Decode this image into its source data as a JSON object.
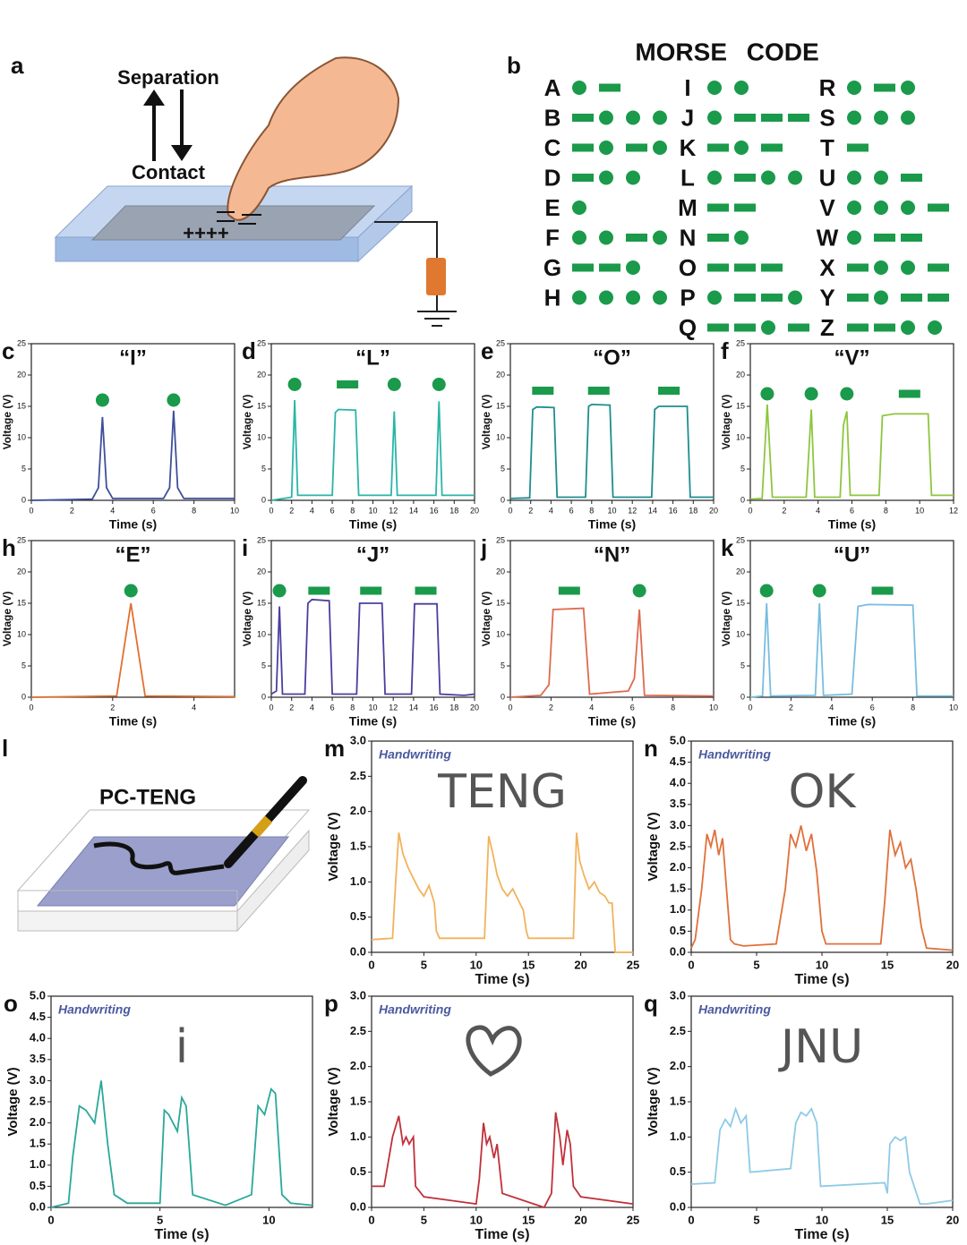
{
  "panel_a": {
    "letter": "a",
    "separation": "Separation",
    "contact": "Contact",
    "charges": "++++"
  },
  "panel_b": {
    "letter": "b",
    "title": "MORSE CODE",
    "letters": [
      {
        "letter": "A",
        "code": ".-"
      },
      {
        "letter": "B",
        "code": "-..."
      },
      {
        "letter": "C",
        "code": "-.-."
      },
      {
        "letter": "D",
        "code": "-.."
      },
      {
        "letter": "E",
        "code": "."
      },
      {
        "letter": "F",
        "code": "..-."
      },
      {
        "letter": "G",
        "code": "--."
      },
      {
        "letter": "H",
        "code": "...."
      },
      {
        "letter": "I",
        "code": ".."
      },
      {
        "letter": "J",
        "code": ".---"
      },
      {
        "letter": "K",
        "code": "-.-"
      },
      {
        "letter": "L",
        "code": ".-.."
      },
      {
        "letter": "M",
        "code": "--"
      },
      {
        "letter": "N",
        "code": "-."
      },
      {
        "letter": "O",
        "code": "---"
      },
      {
        "letter": "P",
        "code": ".--."
      },
      {
        "letter": "Q",
        "code": "--.-"
      },
      {
        "letter": "R",
        "code": ".-."
      },
      {
        "letter": "S",
        "code": "..."
      },
      {
        "letter": "T",
        "code": "-"
      },
      {
        "letter": "U",
        "code": "..-"
      },
      {
        "letter": "V",
        "code": "...-"
      },
      {
        "letter": "W",
        "code": ".--"
      },
      {
        "letter": "X",
        "code": "-..-"
      },
      {
        "letter": "Y",
        "code": "-.--"
      },
      {
        "letter": "Z",
        "code": "--.."
      }
    ]
  },
  "panel_l": {
    "letter": "l",
    "label": "PC-TENG"
  },
  "chart_data": [
    {
      "type": "line",
      "panel": "c",
      "title": "“I”",
      "x_label": "Time (s)",
      "y_label": "Voltage (V)",
      "xlim": [
        0,
        10
      ],
      "xticks": [
        0,
        2,
        4,
        6,
        8,
        10
      ],
      "ylim": [
        0,
        25
      ],
      "yticks": [
        0,
        5,
        10,
        15,
        20,
        25
      ],
      "color": "#3f4f9a",
      "x": [
        0,
        3,
        3.3,
        3.5,
        3.7,
        4,
        6.5,
        6.8,
        7,
        7.2,
        7.5,
        10
      ],
      "values": [
        0,
        0.2,
        2,
        13.3,
        2,
        0.3,
        0.3,
        2,
        14.3,
        2,
        0.3,
        0.3
      ],
      "symbols": [
        {
          "x": 3.5,
          "y": 16,
          "shape": "dot"
        },
        {
          "x": 7,
          "y": 16,
          "shape": "dot"
        }
      ]
    },
    {
      "type": "line",
      "panel": "d",
      "title": "“L”",
      "x_label": "Time (s)",
      "y_label": "Voltage (V)",
      "xlim": [
        0,
        20
      ],
      "xticks": [
        0,
        2,
        4,
        6,
        8,
        10,
        12,
        14,
        16,
        18,
        20
      ],
      "ylim": [
        0,
        25
      ],
      "yticks": [
        0,
        5,
        10,
        15,
        20,
        25
      ],
      "color": "#2ab5a8",
      "x": [
        0,
        2,
        2.3,
        2.6,
        6,
        6.3,
        6.6,
        8.3,
        8.6,
        11.8,
        12.1,
        12.4,
        16.2,
        16.5,
        16.8,
        20
      ],
      "values": [
        0,
        0.5,
        16,
        0.8,
        0.8,
        14,
        14.5,
        14.4,
        0.8,
        0.8,
        14.2,
        0.8,
        0.8,
        15.8,
        0.8,
        0.8
      ],
      "symbols": [
        {
          "x": 2.3,
          "y": 18.5,
          "shape": "dot"
        },
        {
          "x": 7.5,
          "y": 18.5,
          "shape": "dash"
        },
        {
          "x": 12.1,
          "y": 18.5,
          "shape": "dot"
        },
        {
          "x": 16.5,
          "y": 18.5,
          "shape": "dot"
        }
      ]
    },
    {
      "type": "line",
      "panel": "e",
      "title": "“O”",
      "x_label": "Time (s)",
      "y_label": "Voltage (V)",
      "xlim": [
        0,
        20
      ],
      "xticks": [
        0,
        2,
        4,
        6,
        8,
        10,
        12,
        14,
        16,
        18,
        20
      ],
      "ylim": [
        0,
        25
      ],
      "yticks": [
        0,
        5,
        10,
        15,
        20,
        25
      ],
      "color": "#1f8d8d",
      "x": [
        0,
        1.9,
        2.2,
        2.6,
        4.3,
        4.6,
        7.4,
        7.7,
        8,
        9.8,
        10.1,
        13.9,
        14.2,
        14.6,
        17.4,
        17.7,
        20
      ],
      "values": [
        0.3,
        0.4,
        14.5,
        14.9,
        14.8,
        0.5,
        0.5,
        15,
        15.3,
        15.2,
        0.5,
        0.5,
        14.5,
        15,
        15,
        0.5,
        0.5
      ],
      "symbols": [
        {
          "x": 3.2,
          "y": 17.5,
          "shape": "dash"
        },
        {
          "x": 8.7,
          "y": 17.5,
          "shape": "dash"
        },
        {
          "x": 15.6,
          "y": 17.5,
          "shape": "dash"
        }
      ]
    },
    {
      "type": "line",
      "panel": "f",
      "title": "“V”",
      "x_label": "Time (s)",
      "y_label": "Voltage (V)",
      "xlim": [
        0,
        12
      ],
      "xticks": [
        0,
        2,
        4,
        6,
        8,
        10,
        12
      ],
      "ylim": [
        0,
        25
      ],
      "yticks": [
        0,
        5,
        10,
        15,
        20,
        25
      ],
      "color": "#8dc63f",
      "x": [
        0,
        0.7,
        1,
        1.3,
        3.3,
        3.6,
        3.8,
        5.3,
        5.5,
        5.7,
        5.9,
        7.6,
        7.8,
        8.5,
        10.5,
        10.7,
        12
      ],
      "values": [
        0.2,
        0.3,
        15.3,
        0.5,
        0.5,
        14.5,
        0.5,
        0.5,
        12,
        14.2,
        0.8,
        0.8,
        13.5,
        13.8,
        13.8,
        0.8,
        0.8
      ],
      "symbols": [
        {
          "x": 1,
          "y": 17,
          "shape": "dot"
        },
        {
          "x": 3.6,
          "y": 17,
          "shape": "dot"
        },
        {
          "x": 5.7,
          "y": 17,
          "shape": "dot"
        },
        {
          "x": 9.4,
          "y": 17,
          "shape": "dash"
        }
      ]
    },
    {
      "type": "line",
      "panel": "h",
      "title": "“E”",
      "x_label": "Time (s)",
      "y_label": "Voltage (V)",
      "xlim": [
        0,
        5
      ],
      "xticks": [
        0,
        2,
        4
      ],
      "ylim": [
        0,
        25
      ],
      "yticks": [
        0,
        5,
        10,
        15,
        20,
        25
      ],
      "color": "#e07030",
      "x": [
        0,
        2.1,
        2.45,
        2.8,
        5
      ],
      "values": [
        0,
        0.2,
        15,
        0.2,
        0.1
      ],
      "symbols": [
        {
          "x": 2.45,
          "y": 17,
          "shape": "dot"
        }
      ]
    },
    {
      "type": "line",
      "panel": "i",
      "title": "“J”",
      "x_label": "Time (s)",
      "y_label": "Voltage (V)",
      "xlim": [
        0,
        20
      ],
      "xticks": [
        0,
        2,
        4,
        6,
        8,
        10,
        12,
        14,
        16,
        18,
        20
      ],
      "ylim": [
        0,
        25
      ],
      "yticks": [
        0,
        5,
        10,
        15,
        20,
        25
      ],
      "color": "#4a3ea0",
      "x": [
        0,
        0.5,
        0.8,
        1.1,
        3.3,
        3.6,
        4,
        5.7,
        6,
        8.4,
        8.7,
        10.9,
        11.2,
        13.8,
        14.1,
        16.3,
        16.6,
        19,
        20
      ],
      "values": [
        0.5,
        1,
        14.5,
        0.5,
        0.5,
        15,
        15.6,
        15.4,
        0.5,
        0.5,
        15,
        15,
        0.5,
        0.5,
        14.9,
        14.9,
        0.5,
        0.3,
        0.5
      ],
      "symbols": [
        {
          "x": 0.8,
          "y": 17,
          "shape": "dot"
        },
        {
          "x": 4.7,
          "y": 17,
          "shape": "dash"
        },
        {
          "x": 9.8,
          "y": 17,
          "shape": "dash"
        },
        {
          "x": 15.2,
          "y": 17,
          "shape": "dash"
        }
      ]
    },
    {
      "type": "line",
      "panel": "j",
      "title": "“N”",
      "x_label": "Time (s)",
      "y_label": "Voltage (V)",
      "xlim": [
        0,
        10
      ],
      "xticks": [
        0,
        2,
        4,
        6,
        8,
        10
      ],
      "ylim": [
        0,
        25
      ],
      "yticks": [
        0,
        5,
        10,
        15,
        20,
        25
      ],
      "color": "#e06a4f",
      "x": [
        0,
        1.5,
        1.9,
        2.1,
        3.6,
        3.9,
        5.8,
        6.1,
        6.35,
        6.6,
        10
      ],
      "values": [
        0,
        0.3,
        2,
        14,
        14.2,
        0.5,
        1,
        3,
        14,
        0.3,
        0.2
      ],
      "symbols": [
        {
          "x": 2.9,
          "y": 17,
          "shape": "dash"
        },
        {
          "x": 6.35,
          "y": 17,
          "shape": "dot"
        }
      ]
    },
    {
      "type": "line",
      "panel": "k",
      "title": "“U”",
      "x_label": "Time (s)",
      "y_label": "Voltage (V)",
      "xlim": [
        0,
        10
      ],
      "xticks": [
        0,
        2,
        4,
        6,
        8,
        10
      ],
      "ylim": [
        0,
        25
      ],
      "yticks": [
        0,
        5,
        10,
        15,
        20,
        25
      ],
      "color": "#79bde0",
      "x": [
        0,
        0.6,
        0.8,
        1,
        3.2,
        3.4,
        3.6,
        5,
        5.3,
        5.8,
        8,
        8.2,
        10
      ],
      "values": [
        0,
        0.2,
        15,
        0.2,
        0.3,
        15,
        0.3,
        0.5,
        14.5,
        14.8,
        14.7,
        0.2,
        0.2
      ],
      "symbols": [
        {
          "x": 0.8,
          "y": 17,
          "shape": "dot"
        },
        {
          "x": 3.4,
          "y": 17,
          "shape": "dot"
        },
        {
          "x": 6.5,
          "y": 17,
          "shape": "dash"
        }
      ]
    },
    {
      "type": "line",
      "panel": "m",
      "label": "Handwriting",
      "handwriting": "TENG",
      "x_label": "Time (s)",
      "y_label": "Voltage (V)",
      "xlim": [
        0,
        25
      ],
      "xticks": [
        0,
        5,
        10,
        15,
        20,
        25
      ],
      "ylim": [
        0,
        3
      ],
      "yticks": [
        {
          "value": 0,
          "label": "0.0"
        },
        0.5,
        {
          "value": 1,
          "label": "1.0"
        },
        1.5,
        {
          "value": 2,
          "label": "2.0"
        },
        2.5,
        {
          "value": 3,
          "label": "3.0"
        }
      ],
      "color": "#f2b25c",
      "x": [
        0,
        2,
        2.3,
        2.6,
        3,
        3.5,
        4,
        4.5,
        5,
        5.5,
        6,
        6.2,
        6.5,
        10.8,
        11.2,
        11.6,
        12,
        12.5,
        13,
        13.5,
        14,
        14.5,
        14.8,
        15,
        19.3,
        19.6,
        19.9,
        20.3,
        20.8,
        21.3,
        21.8,
        22.3,
        22.7,
        23,
        23.3,
        25
      ],
      "values": [
        0.18,
        0.2,
        1.0,
        1.7,
        1.4,
        1.2,
        1.05,
        0.9,
        0.8,
        0.95,
        0.7,
        0.3,
        0.2,
        0.2,
        1.65,
        1.4,
        1.1,
        0.9,
        0.8,
        0.9,
        0.75,
        0.6,
        0.3,
        0.2,
        0.2,
        1.7,
        1.3,
        1.1,
        0.9,
        1.0,
        0.85,
        0.8,
        0.7,
        0.7,
        0,
        0
      ]
    },
    {
      "type": "line",
      "panel": "n",
      "label": "Handwriting",
      "handwriting": "OK",
      "x_label": "Time (s)",
      "y_label": "Voltage (V)",
      "xlim": [
        0,
        20
      ],
      "xticks": [
        0,
        5,
        10,
        15,
        20
      ],
      "ylim": [
        0,
        5
      ],
      "yticks": [
        {
          "value": 0,
          "label": "0.0"
        },
        0.5,
        {
          "value": 1,
          "label": "1.0"
        },
        1.5,
        {
          "value": 2,
          "label": "2.0"
        },
        2.5,
        {
          "value": 3,
          "label": "3.0"
        },
        3.5,
        {
          "value": 4,
          "label": "4.0"
        },
        4.5,
        {
          "value": 5,
          "label": "5.0"
        }
      ],
      "color": "#e0703a",
      "x": [
        0,
        0.3,
        0.8,
        1.2,
        1.5,
        1.8,
        2.1,
        2.4,
        2.7,
        3,
        3.3,
        4,
        6.5,
        7.2,
        7.6,
        8,
        8.4,
        8.8,
        9.2,
        9.6,
        10,
        10.3,
        11,
        14.5,
        14.8,
        15.2,
        15.6,
        16,
        16.4,
        16.8,
        17.2,
        17.6,
        18,
        20
      ],
      "values": [
        0.1,
        0.3,
        1.5,
        2.8,
        2.5,
        2.9,
        2.3,
        2.7,
        1.5,
        0.3,
        0.2,
        0.15,
        0.2,
        1.5,
        2.8,
        2.5,
        3.0,
        2.4,
        2.8,
        1.9,
        0.5,
        0.2,
        0.2,
        0.2,
        1.2,
        2.9,
        2.3,
        2.6,
        2.0,
        2.2,
        1.5,
        0.6,
        0.1,
        0.05
      ]
    },
    {
      "type": "line",
      "panel": "o",
      "label": "Handwriting",
      "handwriting": "i",
      "x_label": "Time (s)",
      "y_label": "Voltage (V)",
      "xlim": [
        0,
        12
      ],
      "xticks": [
        0,
        5,
        10
      ],
      "ylim": [
        0,
        5
      ],
      "yticks": [
        {
          "value": 0,
          "label": "0.0"
        },
        0.5,
        {
          "value": 1,
          "label": "1.0"
        },
        1.5,
        {
          "value": 2,
          "label": "2.0"
        },
        2.5,
        {
          "value": 3,
          "label": "3.0"
        },
        3.5,
        {
          "value": 4,
          "label": "4.0"
        },
        4.5,
        {
          "value": 5,
          "label": "5.0"
        }
      ],
      "color": "#2aa89a",
      "x": [
        0,
        0.8,
        1.0,
        1.3,
        1.6,
        2.0,
        2.3,
        2.6,
        2.9,
        3.5,
        5,
        5.2,
        5.4,
        5.8,
        6.0,
        6.2,
        6.5,
        8,
        9.2,
        9.5,
        9.8,
        10.1,
        10.3,
        10.6,
        11,
        12
      ],
      "values": [
        0,
        0.1,
        1.2,
        2.4,
        2.3,
        2.0,
        3.0,
        1.5,
        0.3,
        0.1,
        0.1,
        2.3,
        2.2,
        1.8,
        2.6,
        2.4,
        0.3,
        0.05,
        0.3,
        2.4,
        2.2,
        2.8,
        2.7,
        0.3,
        0.1,
        0.05
      ]
    },
    {
      "type": "line",
      "panel": "p",
      "label": "Handwriting",
      "x_label": "Time (s)",
      "y_label": "Voltage (V)",
      "xlim": [
        0,
        25
      ],
      "xticks": [
        0,
        5,
        10,
        15,
        20,
        25
      ],
      "ylim": [
        0,
        3
      ],
      "yticks": [
        {
          "value": 0,
          "label": "0.0"
        },
        0.5,
        {
          "value": 1,
          "label": "1.0"
        },
        1.5,
        {
          "value": 2,
          "label": "2.0"
        },
        2.5,
        {
          "value": 3,
          "label": "3.0"
        }
      ],
      "color": "#c0303a",
      "x": [
        0,
        1.2,
        2,
        2.6,
        3,
        3.3,
        3.6,
        4,
        4.2,
        5,
        10,
        10.3,
        10.7,
        11,
        11.3,
        11.7,
        12,
        12.5,
        16.5,
        17.2,
        17.6,
        18,
        18.3,
        18.7,
        19,
        19.3,
        20,
        25
      ],
      "values": [
        0.3,
        0.3,
        1.0,
        1.3,
        0.9,
        1.0,
        0.9,
        1.0,
        0.3,
        0.15,
        0.05,
        0.4,
        1.2,
        0.9,
        1.0,
        0.7,
        0.9,
        0.2,
        0,
        0.2,
        1.35,
        1.0,
        0.6,
        1.1,
        0.9,
        0.3,
        0.15,
        0.05
      ]
    },
    {
      "type": "line",
      "panel": "q",
      "label": "Handwriting",
      "handwriting": "JNU",
      "x_label": "Time (s)",
      "y_label": "Voltage (V)",
      "xlim": [
        0,
        20
      ],
      "xticks": [
        0,
        5,
        10,
        15,
        20
      ],
      "ylim": [
        0,
        3
      ],
      "yticks": [
        {
          "value": 0,
          "label": "0.0"
        },
        0.5,
        {
          "value": 1,
          "label": "1.0"
        },
        1.5,
        {
          "value": 2,
          "label": "2.0"
        },
        2.5,
        {
          "value": 3,
          "label": "3.0"
        }
      ],
      "color": "#8ecae6",
      "x": [
        0,
        1.8,
        2.2,
        2.6,
        3,
        3.4,
        3.8,
        4.2,
        4.5,
        7.6,
        8,
        8.4,
        8.8,
        9.2,
        9.6,
        9.9,
        14.8,
        15,
        15.2,
        15.6,
        16,
        16.4,
        16.7,
        17.5,
        18,
        20
      ],
      "values": [
        0.33,
        0.35,
        1.1,
        1.25,
        1.15,
        1.4,
        1.2,
        1.3,
        0.5,
        0.55,
        1.2,
        1.35,
        1.3,
        1.4,
        1.2,
        0.3,
        0.35,
        0.2,
        0.9,
        1.0,
        0.95,
        1.0,
        0.5,
        0.05,
        0.05,
        0.1
      ]
    }
  ]
}
